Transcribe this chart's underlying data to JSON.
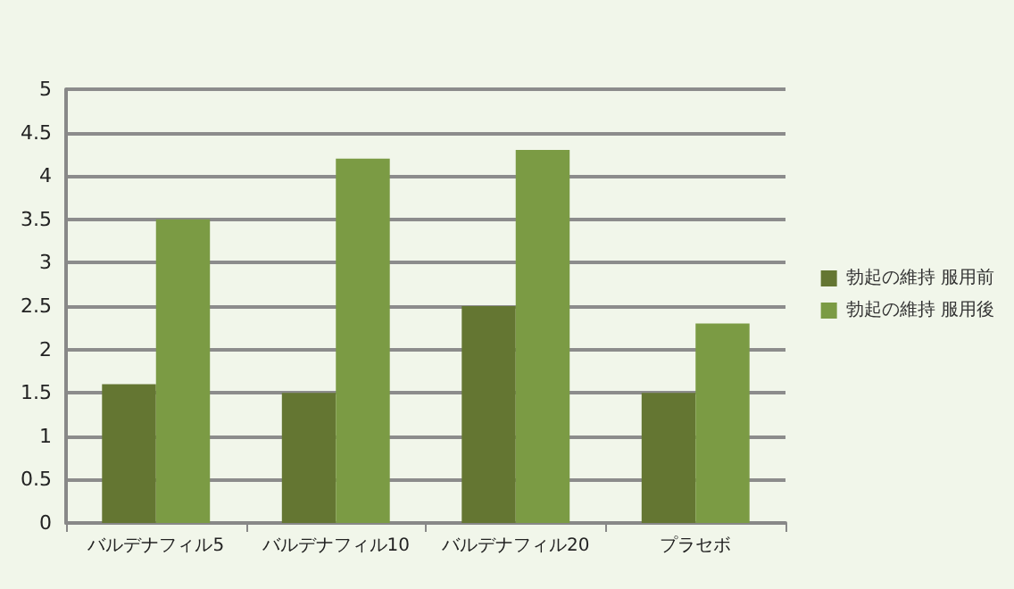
{
  "chart_data": {
    "type": "bar",
    "categories": [
      "バルデナフィル5",
      "バルデナフィル10",
      "バルデナフィル20",
      "プラセボ"
    ],
    "series": [
      {
        "name": "勃起の維持 服用前",
        "color": "#647632",
        "values": [
          1.6,
          1.5,
          2.5,
          1.5
        ]
      },
      {
        "name": "勃起の維持 服用後",
        "color": "#7b9b44",
        "values": [
          3.5,
          4.2,
          4.3,
          2.3
        ]
      }
    ],
    "ylim": [
      0,
      5
    ],
    "yticks": [
      0,
      0.5,
      1,
      1.5,
      2,
      2.5,
      3,
      3.5,
      4,
      4.5,
      5
    ],
    "grid": "y",
    "legend": "right"
  }
}
